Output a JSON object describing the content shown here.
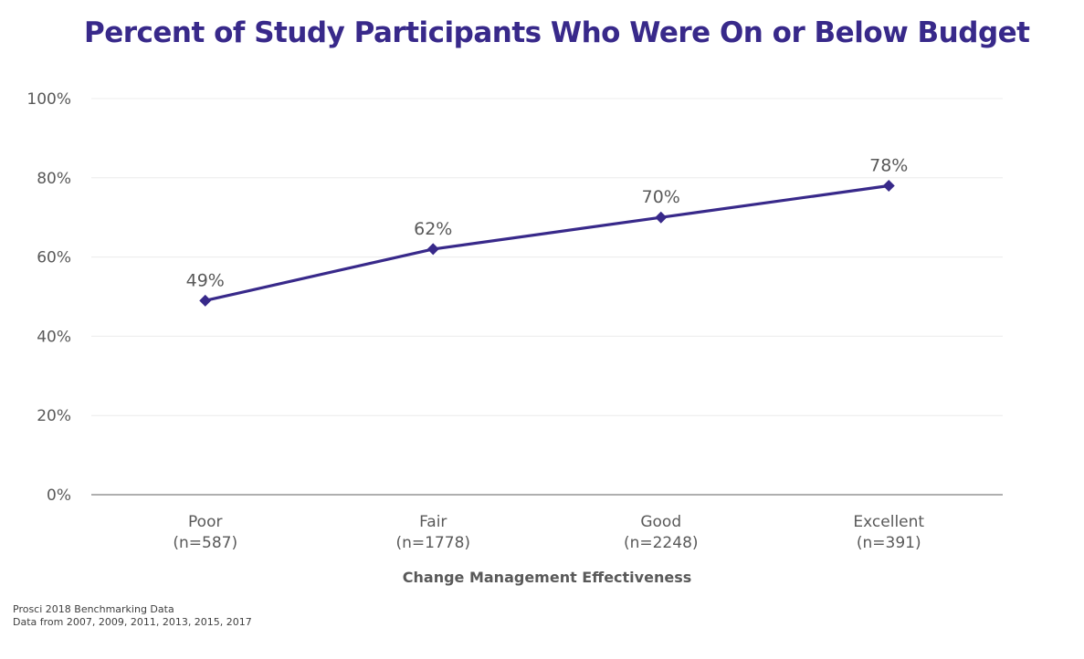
{
  "chart_data": {
    "type": "line",
    "title": "Percent of Study Participants Who Were On or Below Budget",
    "xlabel": "Change Management Effectiveness",
    "ylabel": "",
    "categories": [
      "Poor",
      "Fair",
      "Good",
      "Excellent"
    ],
    "category_counts": [
      "(n=587)",
      "(n=1778)",
      "(n=2248)",
      "(n=391)"
    ],
    "series": [
      {
        "name": "On or Below Budget",
        "values": [
          49,
          62,
          70,
          78
        ],
        "labels": [
          "49%",
          "62%",
          "70%",
          "78%"
        ]
      }
    ],
    "ylim": [
      0,
      100
    ],
    "yticks": [
      0,
      20,
      40,
      60,
      80,
      100
    ],
    "ytick_labels": [
      "0%",
      "20%",
      "40%",
      "60%",
      "80%",
      "100%"
    ],
    "grid": true,
    "legend": "none",
    "line_color": "#38298a",
    "grid_color": "#ececec",
    "axis_color": "#7f7f7f",
    "title_color": "#38298a"
  },
  "footnotes": [
    "Prosci 2018 Benchmarking Data",
    "Data from 2007, 2009, 2011, 2013, 2015,  2017"
  ]
}
